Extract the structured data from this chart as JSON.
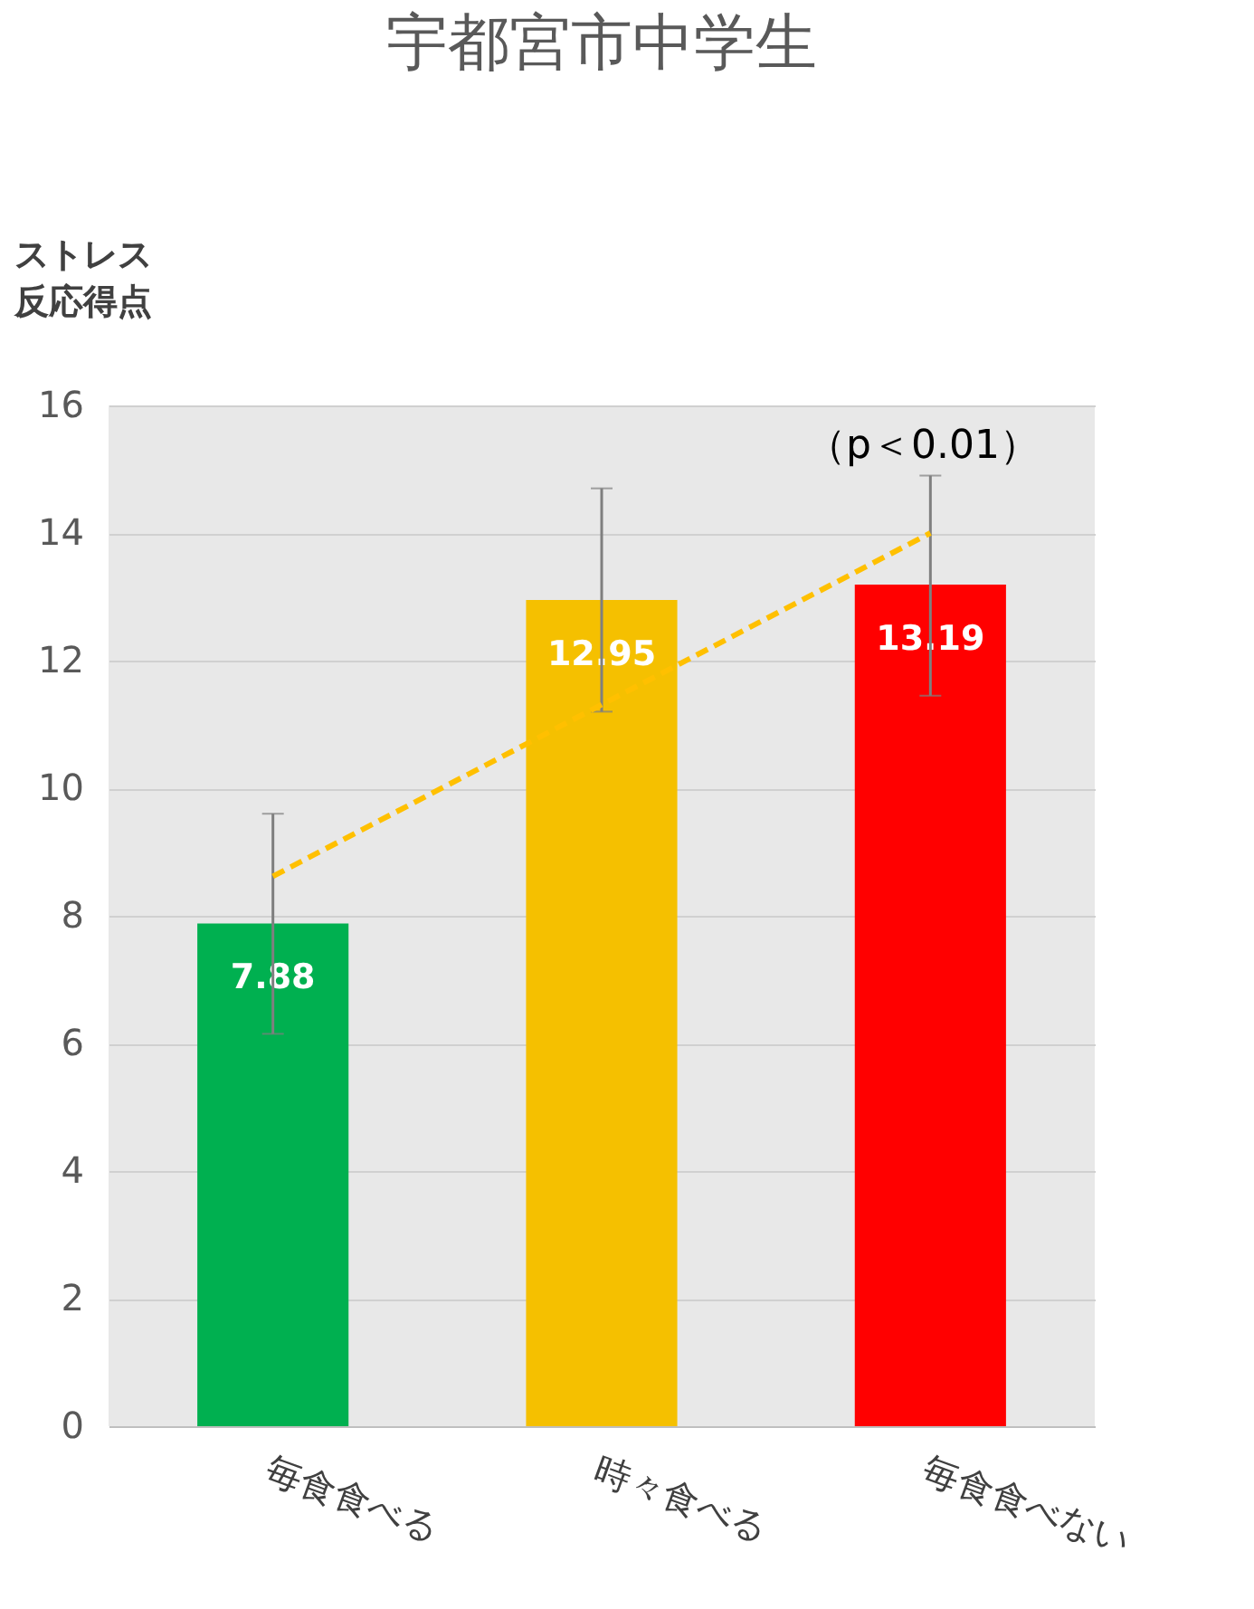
{
  "chart_data": {
    "type": "bar",
    "title": "宇都宮市中学生",
    "ylabel": "ストレス反応得点",
    "categories": [
      "毎食食べる",
      "時々食べる",
      "毎食食べない"
    ],
    "series": [
      {
        "colors": [
          "#00b050",
          "#f5c000",
          "#ff0000"
        ],
        "values": [
          7.88,
          12.95,
          13.19
        ],
        "value_labels": [
          "7.88",
          "12.95",
          "13.19"
        ],
        "errors": [
          [
            6.15,
            9.6
          ],
          [
            11.2,
            14.7
          ],
          [
            11.45,
            14.9
          ]
        ]
      },
      {
        "type": "line",
        "color": "#ffc000",
        "line_style": "dashed",
        "x": [
          "毎食食べる",
          "時々食べる",
          "毎食食べない"
        ],
        "values": [
          8.62,
          11.31,
          14.0
        ]
      }
    ],
    "ylim": [
      0,
      16
    ],
    "yticks": [
      0,
      2,
      4,
      6,
      8,
      10,
      12,
      14,
      16
    ],
    "grid": "y",
    "annotations": [
      "（p＜0.01）"
    ]
  }
}
